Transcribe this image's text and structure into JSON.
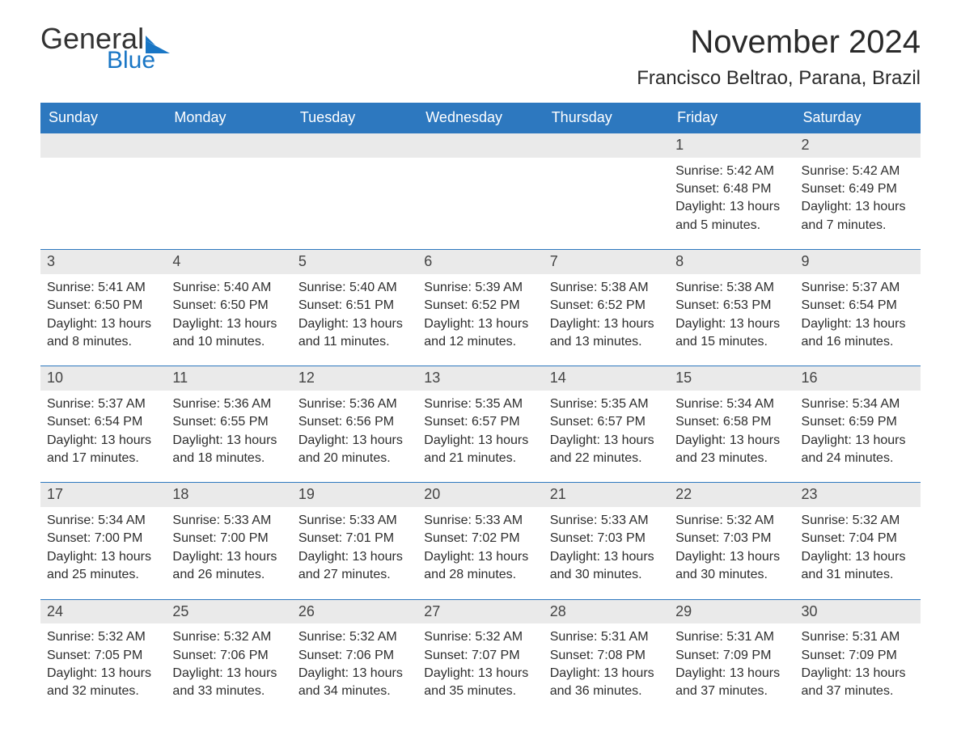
{
  "logo": {
    "word1": "General",
    "word2": "Blue",
    "word_color": "#333333",
    "accent_color": "#1976c5"
  },
  "title": "November 2024",
  "location": "Francisco Beltrao, Parana, Brazil",
  "header_bg": "#2d78bf",
  "header_text_color": "#ffffff",
  "daynum_bg": "#eaeaea",
  "border_color": "#2d78bf",
  "text_color": "#2d2d2d",
  "background_color": "#ffffff",
  "body_fontsize": 16,
  "daynames": [
    "Sunday",
    "Monday",
    "Tuesday",
    "Wednesday",
    "Thursday",
    "Friday",
    "Saturday"
  ],
  "weeks": [
    [
      null,
      null,
      null,
      null,
      null,
      {
        "num": "1",
        "sunrise": "5:42 AM",
        "sunset": "6:48 PM",
        "daylight": "13 hours and 5 minutes."
      },
      {
        "num": "2",
        "sunrise": "5:42 AM",
        "sunset": "6:49 PM",
        "daylight": "13 hours and 7 minutes."
      }
    ],
    [
      {
        "num": "3",
        "sunrise": "5:41 AM",
        "sunset": "6:50 PM",
        "daylight": "13 hours and 8 minutes."
      },
      {
        "num": "4",
        "sunrise": "5:40 AM",
        "sunset": "6:50 PM",
        "daylight": "13 hours and 10 minutes."
      },
      {
        "num": "5",
        "sunrise": "5:40 AM",
        "sunset": "6:51 PM",
        "daylight": "13 hours and 11 minutes."
      },
      {
        "num": "6",
        "sunrise": "5:39 AM",
        "sunset": "6:52 PM",
        "daylight": "13 hours and 12 minutes."
      },
      {
        "num": "7",
        "sunrise": "5:38 AM",
        "sunset": "6:52 PM",
        "daylight": "13 hours and 13 minutes."
      },
      {
        "num": "8",
        "sunrise": "5:38 AM",
        "sunset": "6:53 PM",
        "daylight": "13 hours and 15 minutes."
      },
      {
        "num": "9",
        "sunrise": "5:37 AM",
        "sunset": "6:54 PM",
        "daylight": "13 hours and 16 minutes."
      }
    ],
    [
      {
        "num": "10",
        "sunrise": "5:37 AM",
        "sunset": "6:54 PM",
        "daylight": "13 hours and 17 minutes."
      },
      {
        "num": "11",
        "sunrise": "5:36 AM",
        "sunset": "6:55 PM",
        "daylight": "13 hours and 18 minutes."
      },
      {
        "num": "12",
        "sunrise": "5:36 AM",
        "sunset": "6:56 PM",
        "daylight": "13 hours and 20 minutes."
      },
      {
        "num": "13",
        "sunrise": "5:35 AM",
        "sunset": "6:57 PM",
        "daylight": "13 hours and 21 minutes."
      },
      {
        "num": "14",
        "sunrise": "5:35 AM",
        "sunset": "6:57 PM",
        "daylight": "13 hours and 22 minutes."
      },
      {
        "num": "15",
        "sunrise": "5:34 AM",
        "sunset": "6:58 PM",
        "daylight": "13 hours and 23 minutes."
      },
      {
        "num": "16",
        "sunrise": "5:34 AM",
        "sunset": "6:59 PM",
        "daylight": "13 hours and 24 minutes."
      }
    ],
    [
      {
        "num": "17",
        "sunrise": "5:34 AM",
        "sunset": "7:00 PM",
        "daylight": "13 hours and 25 minutes."
      },
      {
        "num": "18",
        "sunrise": "5:33 AM",
        "sunset": "7:00 PM",
        "daylight": "13 hours and 26 minutes."
      },
      {
        "num": "19",
        "sunrise": "5:33 AM",
        "sunset": "7:01 PM",
        "daylight": "13 hours and 27 minutes."
      },
      {
        "num": "20",
        "sunrise": "5:33 AM",
        "sunset": "7:02 PM",
        "daylight": "13 hours and 28 minutes."
      },
      {
        "num": "21",
        "sunrise": "5:33 AM",
        "sunset": "7:03 PM",
        "daylight": "13 hours and 30 minutes."
      },
      {
        "num": "22",
        "sunrise": "5:32 AM",
        "sunset": "7:03 PM",
        "daylight": "13 hours and 30 minutes."
      },
      {
        "num": "23",
        "sunrise": "5:32 AM",
        "sunset": "7:04 PM",
        "daylight": "13 hours and 31 minutes."
      }
    ],
    [
      {
        "num": "24",
        "sunrise": "5:32 AM",
        "sunset": "7:05 PM",
        "daylight": "13 hours and 32 minutes."
      },
      {
        "num": "25",
        "sunrise": "5:32 AM",
        "sunset": "7:06 PM",
        "daylight": "13 hours and 33 minutes."
      },
      {
        "num": "26",
        "sunrise": "5:32 AM",
        "sunset": "7:06 PM",
        "daylight": "13 hours and 34 minutes."
      },
      {
        "num": "27",
        "sunrise": "5:32 AM",
        "sunset": "7:07 PM",
        "daylight": "13 hours and 35 minutes."
      },
      {
        "num": "28",
        "sunrise": "5:31 AM",
        "sunset": "7:08 PM",
        "daylight": "13 hours and 36 minutes."
      },
      {
        "num": "29",
        "sunrise": "5:31 AM",
        "sunset": "7:09 PM",
        "daylight": "13 hours and 37 minutes."
      },
      {
        "num": "30",
        "sunrise": "5:31 AM",
        "sunset": "7:09 PM",
        "daylight": "13 hours and 37 minutes."
      }
    ]
  ],
  "labels": {
    "sunrise": "Sunrise: ",
    "sunset": "Sunset: ",
    "daylight": "Daylight: "
  }
}
